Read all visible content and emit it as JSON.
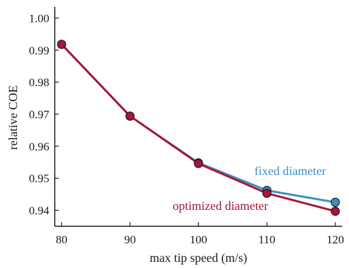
{
  "chart_data": {
    "type": "line",
    "xlabel": "max tip speed (m/s)",
    "ylabel": "relative COE",
    "xlim": [
      79,
      121
    ],
    "ylim": [
      0.935,
      1.0035
    ],
    "x_ticks": [
      80,
      90,
      100,
      110,
      120
    ],
    "y_ticks": [
      0.94,
      0.95,
      0.96,
      0.97,
      0.98,
      0.99,
      1.0
    ],
    "x_tick_labels": [
      "80",
      "90",
      "100",
      "110",
      "120"
    ],
    "y_tick_labels": [
      "0.94",
      "0.95",
      "0.96",
      "0.97",
      "0.98",
      "0.99",
      "1.00"
    ],
    "grid": false,
    "series": [
      {
        "name": "fixed diameter",
        "color": "#3b8fc6",
        "x": [
          80,
          90,
          100,
          110,
          120
        ],
        "y": [
          0.9918,
          0.9694,
          0.9548,
          0.9462,
          0.9425
        ]
      },
      {
        "name": "optimized diameter",
        "color": "#a81538",
        "x": [
          80,
          90,
          100,
          110,
          120
        ],
        "y": [
          0.9918,
          0.9694,
          0.9546,
          0.9453,
          0.9397
        ]
      }
    ]
  }
}
